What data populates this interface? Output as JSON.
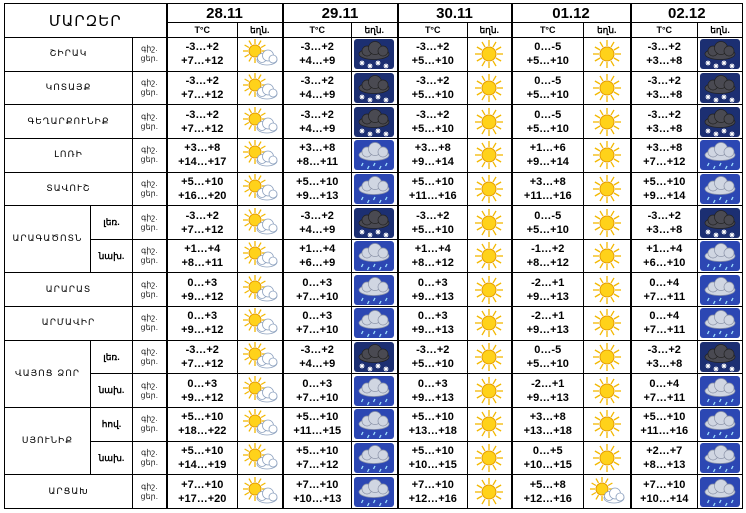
{
  "header": {
    "region_title": "ՄԱՐԶԵՐ",
    "temp_label": "T°C",
    "icon_label": "եղն.",
    "dates": [
      "28.11",
      "29.11",
      "30.11",
      "01.12",
      "02.12"
    ]
  },
  "rows": [
    {
      "region": "ՇԻՐԱԿ",
      "sub": null,
      "labels": [
        "գիշ.",
        "ցեր."
      ],
      "cells": [
        [
          "-3…+2",
          "+7…+12",
          "sun-cloud"
        ],
        [
          "-3…+2",
          "+4…+9",
          "cloud-snow"
        ],
        [
          "-3…+2",
          "+5…+10",
          "sun"
        ],
        [
          "0…-5",
          "+5…+10",
          "sun"
        ],
        [
          "-3…+2",
          "+3…+8",
          "cloud-snow"
        ]
      ]
    },
    {
      "region": "ԿՈՏԱՅՔ",
      "sub": null,
      "labels": [
        "գիշ.",
        "ցեր."
      ],
      "cells": [
        [
          "-3…+2",
          "+7…+12",
          "sun-cloud"
        ],
        [
          "-3…+2",
          "+4…+9",
          "cloud-snow"
        ],
        [
          "-3…+2",
          "+5…+10",
          "sun"
        ],
        [
          "0…-5",
          "+5…+10",
          "sun"
        ],
        [
          "-3…+2",
          "+3…+8",
          "cloud-snow"
        ]
      ]
    },
    {
      "region": "ԳԵՂԱՐՔՈՒՆԻՔ",
      "sub": null,
      "labels": [
        "գիշ.",
        "ցեր."
      ],
      "cells": [
        [
          "-3…+2",
          "+7…+12",
          "sun-cloud"
        ],
        [
          "-3…+2",
          "+4…+9",
          "cloud-snow"
        ],
        [
          "-3…+2",
          "+5…+10",
          "sun"
        ],
        [
          "0…-5",
          "+5…+10",
          "sun"
        ],
        [
          "-3…+2",
          "+3…+8",
          "cloud-snow"
        ]
      ]
    },
    {
      "region": "ԼՈՌԻ",
      "sub": null,
      "labels": [
        "գիշ.",
        "ցեր."
      ],
      "cells": [
        [
          "+3…+8",
          "+14…+17",
          "sun-cloud"
        ],
        [
          "+3…+8",
          "+8…+11",
          "cloud-rain"
        ],
        [
          "+3…+8",
          "+9…+14",
          "sun"
        ],
        [
          "+1…+6",
          "+9…+14",
          "sun"
        ],
        [
          "+3…+8",
          "+7…+12",
          "cloud-rain"
        ]
      ]
    },
    {
      "region": "ՏԱՎՈՒՇ",
      "sub": null,
      "labels": [
        "գիշ.",
        "ցեր."
      ],
      "cells": [
        [
          "+5…+10",
          "+16…+20",
          "sun-cloud"
        ],
        [
          "+5…+10",
          "+9…+13",
          "cloud-rain"
        ],
        [
          "+5…+10",
          "+11…+16",
          "sun"
        ],
        [
          "+3…+8",
          "+11…+16",
          "sun"
        ],
        [
          "+5…+10",
          "+9…+14",
          "cloud-rain"
        ]
      ]
    },
    {
      "region": "ԱՐԱԳԱԾՈՏՆ",
      "sub": "լեռ.",
      "labels": [
        "գիշ.",
        "ցեր."
      ],
      "cells": [
        [
          "-3…+2",
          "+7…+12",
          "sun-cloud"
        ],
        [
          "-3…+2",
          "+4…+9",
          "cloud-snow"
        ],
        [
          "-3…+2",
          "+5…+10",
          "sun"
        ],
        [
          "0…-5",
          "+5…+10",
          "sun"
        ],
        [
          "-3…+2",
          "+3…+8",
          "cloud-snow"
        ]
      ]
    },
    {
      "region": null,
      "sub": "նախ.",
      "labels": [
        "գիշ.",
        "ցեր."
      ],
      "cells": [
        [
          "+1…+4",
          "+8…+11",
          "sun-cloud"
        ],
        [
          "+1…+4",
          "+6…+9",
          "cloud-rain"
        ],
        [
          "+1…+4",
          "+8…+12",
          "sun"
        ],
        [
          "-1…+2",
          "+8…+12",
          "sun"
        ],
        [
          "+1…+4",
          "+6…+10",
          "cloud-rain"
        ]
      ]
    },
    {
      "region": "ԱՐԱՐԱՏ",
      "sub": null,
      "labels": [
        "գիշ.",
        "ցեր."
      ],
      "cells": [
        [
          "0…+3",
          "+9…+12",
          "sun-cloud"
        ],
        [
          "0…+3",
          "+7…+10",
          "cloud-rain"
        ],
        [
          "0…+3",
          "+9…+13",
          "sun"
        ],
        [
          "-2…+1",
          "+9…+13",
          "sun"
        ],
        [
          "0…+4",
          "+7…+11",
          "cloud-rain"
        ]
      ]
    },
    {
      "region": "ԱՐՄԱՎԻՐ",
      "sub": null,
      "labels": [
        "գիշ.",
        "ցեր."
      ],
      "cells": [
        [
          "0…+3",
          "+9…+12",
          "sun-cloud"
        ],
        [
          "0…+3",
          "+7…+10",
          "cloud-rain"
        ],
        [
          "0…+3",
          "+9…+13",
          "sun"
        ],
        [
          "-2…+1",
          "+9…+13",
          "sun"
        ],
        [
          "0…+4",
          "+7…+11",
          "cloud-rain"
        ]
      ]
    },
    {
      "region": "ՎԱՅՈՑ ՁՈՐ",
      "sub": "լեռ.",
      "labels": [
        "գիշ.",
        "ցեր."
      ],
      "cells": [
        [
          "-3…+2",
          "+7…+12",
          "sun-cloud"
        ],
        [
          "-3…+2",
          "+4…+9",
          "cloud-snow"
        ],
        [
          "-3…+2",
          "+5…+10",
          "sun"
        ],
        [
          "0…-5",
          "+5…+10",
          "sun"
        ],
        [
          "-3…+2",
          "+3…+8",
          "cloud-snow"
        ]
      ]
    },
    {
      "region": null,
      "sub": "նախ.",
      "labels": [
        "գիշ.",
        "ցեր."
      ],
      "cells": [
        [
          "0…+3",
          "+9…+12",
          "sun-cloud"
        ],
        [
          "0…+3",
          "+7…+10",
          "cloud-rain"
        ],
        [
          "0…+3",
          "+9…+13",
          "sun"
        ],
        [
          "-2…+1",
          "+9…+13",
          "sun"
        ],
        [
          "0…+4",
          "+7…+11",
          "cloud-rain"
        ]
      ]
    },
    {
      "region": "ՍՅՈՒՆԻՔ",
      "sub": "հով.",
      "labels": [
        "գիշ.",
        "ցեր."
      ],
      "cells": [
        [
          "+5…+10",
          "+18…+22",
          "sun-cloud"
        ],
        [
          "+5…+10",
          "+11…+15",
          "cloud-rain"
        ],
        [
          "+5…+10",
          "+13…+18",
          "sun"
        ],
        [
          "+3…+8",
          "+13…+18",
          "sun"
        ],
        [
          "+5…+10",
          "+11…+16",
          "cloud-rain"
        ]
      ]
    },
    {
      "region": null,
      "sub": "նախ.",
      "labels": [
        "գիշ.",
        "ցեր."
      ],
      "cells": [
        [
          "+5…+10",
          "+14…+19",
          "sun-cloud"
        ],
        [
          "+5…+10",
          "+7…+12",
          "cloud-rain"
        ],
        [
          "+5…+10",
          "+10…+15",
          "sun"
        ],
        [
          "0…+5",
          "+10…+15",
          "sun"
        ],
        [
          "+2…+7",
          "+8…+13",
          "cloud-rain"
        ]
      ]
    },
    {
      "region": "ԱՐՑԱԽ",
      "sub": null,
      "labels": [
        "գիշ.",
        "ցեր."
      ],
      "cells": [
        [
          "+7…+10",
          "+17…+20",
          "sun-cloud"
        ],
        [
          "+7…+10",
          "+10…+13",
          "cloud-rain"
        ],
        [
          "+7…+10",
          "+12…+16",
          "sun"
        ],
        [
          "+5…+8",
          "+12…+16",
          "sun-cloud"
        ],
        [
          "+7…+10",
          "+10…+14",
          "cloud-rain"
        ]
      ]
    }
  ]
}
